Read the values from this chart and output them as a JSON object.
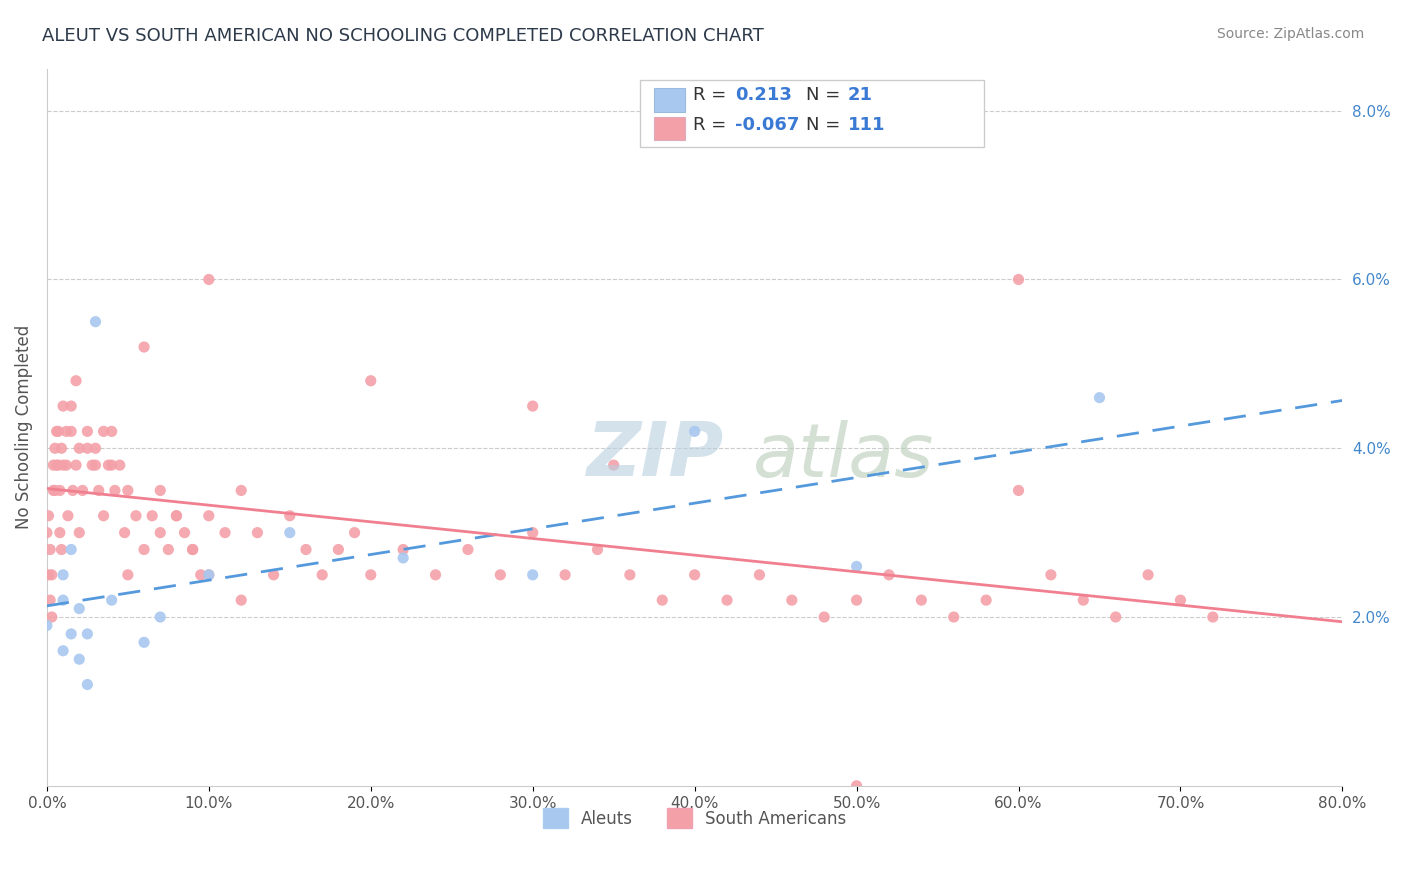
{
  "title": "ALEUT VS SOUTH AMERICAN NO SCHOOLING COMPLETED CORRELATION CHART",
  "source": "Source: ZipAtlas.com",
  "ylabel": "No Schooling Completed",
  "aleut_R": 0.213,
  "aleut_N": 21,
  "sa_R": -0.067,
  "sa_N": 111,
  "aleut_color": "#a8c8f0",
  "sa_color": "#f4a0a8",
  "aleut_line_color": "#5599dd",
  "sa_line_color": "#f08090",
  "title_color": "#2d3a4a",
  "legend_text_color": "#3a7ad4",
  "background_color": "#ffffff",
  "grid_color": "#cccccc",
  "aleut_scatter_x": [
    0.0,
    0.01,
    0.01,
    0.01,
    0.015,
    0.015,
    0.02,
    0.02,
    0.025,
    0.025,
    0.03,
    0.04,
    0.06,
    0.07,
    0.1,
    0.15,
    0.22,
    0.3,
    0.4,
    0.5,
    0.65
  ],
  "aleut_scatter_y": [
    0.019,
    0.025,
    0.022,
    0.016,
    0.028,
    0.018,
    0.021,
    0.015,
    0.018,
    0.012,
    0.055,
    0.022,
    0.017,
    0.02,
    0.025,
    0.03,
    0.027,
    0.025,
    0.042,
    0.026,
    0.046
  ],
  "sa_scatter_x": [
    0.0,
    0.001,
    0.002,
    0.003,
    0.004,
    0.005,
    0.006,
    0.007,
    0.008,
    0.009,
    0.01,
    0.012,
    0.013,
    0.015,
    0.016,
    0.018,
    0.02,
    0.022,
    0.025,
    0.028,
    0.03,
    0.032,
    0.035,
    0.038,
    0.04,
    0.042,
    0.045,
    0.048,
    0.05,
    0.055,
    0.06,
    0.065,
    0.07,
    0.075,
    0.08,
    0.085,
    0.09,
    0.095,
    0.1,
    0.11,
    0.12,
    0.13,
    0.14,
    0.15,
    0.16,
    0.17,
    0.18,
    0.19,
    0.2,
    0.22,
    0.24,
    0.26,
    0.28,
    0.3,
    0.32,
    0.34,
    0.36,
    0.38,
    0.4,
    0.42,
    0.44,
    0.46,
    0.48,
    0.5,
    0.52,
    0.54,
    0.56,
    0.58,
    0.6,
    0.62,
    0.64,
    0.66,
    0.68,
    0.7,
    0.72,
    0.3,
    0.35,
    0.1,
    0.2,
    0.5,
    0.001,
    0.002,
    0.003,
    0.004,
    0.005,
    0.006,
    0.007,
    0.008,
    0.009,
    0.01,
    0.012,
    0.015,
    0.018,
    0.02,
    0.025,
    0.03,
    0.035,
    0.04,
    0.05,
    0.06,
    0.07,
    0.08,
    0.09,
    0.1,
    0.12,
    0.6
  ],
  "sa_scatter_y": [
    0.03,
    0.032,
    0.028,
    0.025,
    0.035,
    0.04,
    0.038,
    0.042,
    0.03,
    0.028,
    0.045,
    0.038,
    0.032,
    0.042,
    0.035,
    0.038,
    0.04,
    0.035,
    0.042,
    0.038,
    0.04,
    0.035,
    0.032,
    0.038,
    0.042,
    0.035,
    0.038,
    0.03,
    0.035,
    0.032,
    0.028,
    0.032,
    0.03,
    0.028,
    0.032,
    0.03,
    0.028,
    0.025,
    0.032,
    0.03,
    0.035,
    0.03,
    0.025,
    0.032,
    0.028,
    0.025,
    0.028,
    0.03,
    0.025,
    0.028,
    0.025,
    0.028,
    0.025,
    0.03,
    0.025,
    0.028,
    0.025,
    0.022,
    0.025,
    0.022,
    0.025,
    0.022,
    0.02,
    0.022,
    0.025,
    0.022,
    0.02,
    0.022,
    0.06,
    0.025,
    0.022,
    0.02,
    0.025,
    0.022,
    0.02,
    0.045,
    0.038,
    0.06,
    0.048,
    0.0,
    0.025,
    0.022,
    0.02,
    0.038,
    0.035,
    0.042,
    0.038,
    0.035,
    0.04,
    0.038,
    0.042,
    0.045,
    0.048,
    0.03,
    0.04,
    0.038,
    0.042,
    0.038,
    0.025,
    0.052,
    0.035,
    0.032,
    0.028,
    0.025,
    0.022,
    0.035
  ],
  "xlim": [
    0,
    0.8
  ],
  "ylim": [
    0,
    0.085
  ],
  "xtick_positions": [
    0.0,
    0.1,
    0.2,
    0.3,
    0.4,
    0.5,
    0.6,
    0.7,
    0.8
  ],
  "xtick_labels": [
    "0.0%",
    "10.0%",
    "20.0%",
    "30.0%",
    "40.0%",
    "50.0%",
    "60.0%",
    "70.0%",
    "80.0%"
  ],
  "ytick_right_positions": [
    0.02,
    0.04,
    0.06,
    0.08
  ],
  "ytick_right_labels": [
    "2.0%",
    "4.0%",
    "6.0%",
    "8.0%"
  ]
}
